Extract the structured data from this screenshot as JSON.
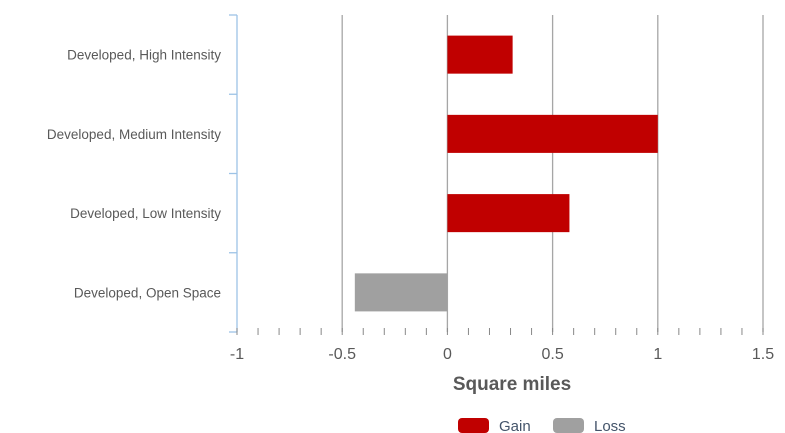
{
  "chart_data": {
    "type": "bar",
    "orientation": "horizontal",
    "categories": [
      "Developed, High Intensity",
      "Developed, Medium Intensity",
      "Developed, Low Intensity",
      "Developed, Open Space"
    ],
    "values": [
      0.31,
      1.0,
      0.58,
      -0.44
    ],
    "xlabel": "Square miles",
    "ylabel": "",
    "xlim": [
      -1,
      1.5
    ],
    "xticks": [
      -1,
      -0.5,
      0,
      0.5,
      1,
      1.5
    ],
    "xtick_labels": [
      "-1",
      "-0.5",
      "0",
      "0.5",
      "1",
      "1.5"
    ],
    "grid": true,
    "legend": {
      "placement": "bottom",
      "entries": [
        {
          "name": "Gain",
          "color": "#c00000"
        },
        {
          "name": "Loss",
          "color": "#a0a0a0"
        }
      ]
    },
    "colors": {
      "gain": "#c00000",
      "loss": "#a0a0a0",
      "grid": "#a6a6a6",
      "axis": "#9dc3e6"
    }
  }
}
